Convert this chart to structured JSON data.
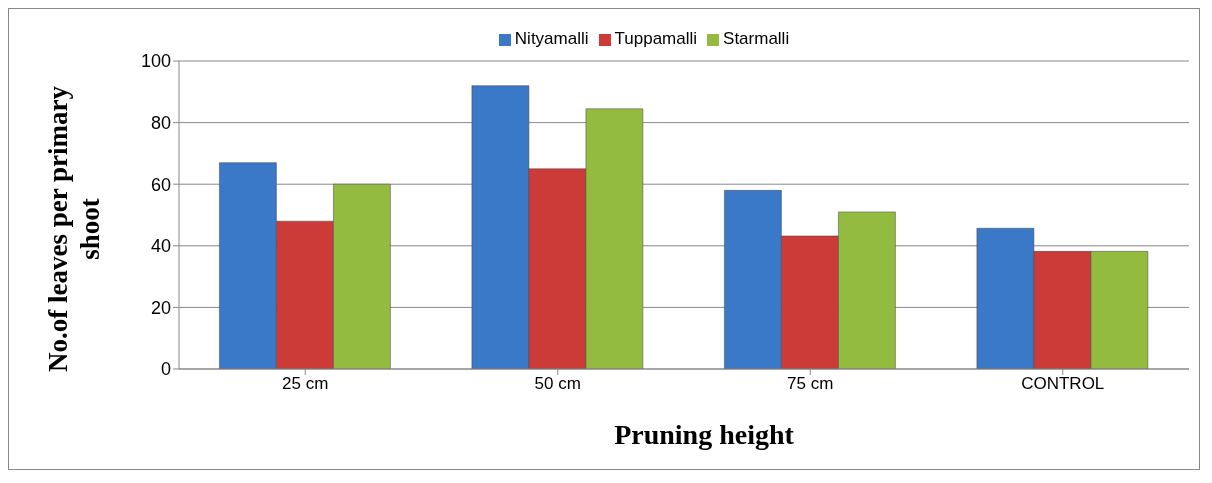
{
  "chart_data": {
    "type": "bar",
    "xlabel": "Pruning height",
    "ylabel": "No.of leaves per primary shoot",
    "categories": [
      "25 cm",
      "50 cm",
      "75 cm",
      "CONTROL"
    ],
    "series": [
      {
        "name": "Nityamalli",
        "color": "#3a78c8",
        "values": [
          67,
          92,
          58,
          45.7
        ]
      },
      {
        "name": "Tuppamalli",
        "color": "#cc3b38",
        "values": [
          48,
          65,
          43.2,
          38.2
        ]
      },
      {
        "name": "Starmalli",
        "color": "#93bb40",
        "values": [
          60,
          84.5,
          51,
          38.2
        ]
      }
    ],
    "ylim": [
      0,
      100
    ],
    "yticks": [
      0,
      20,
      40,
      60,
      80,
      100
    ],
    "grid": "y",
    "legend": "top"
  }
}
